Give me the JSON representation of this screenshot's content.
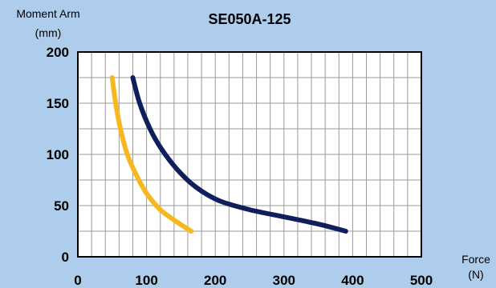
{
  "chart_data": {
    "type": "line",
    "title": "SE050A-125",
    "ylabel_line1": "Moment Arm",
    "ylabel_line2": "(mm)",
    "xlabel_line1": "Force",
    "xlabel_line2": "(N)",
    "xlim": [
      0,
      500
    ],
    "ylim": [
      0,
      200
    ],
    "x_ticks": [
      "0",
      "100",
      "200",
      "300",
      "400",
      "500"
    ],
    "y_ticks": [
      "0",
      "50",
      "100",
      "150",
      "200"
    ],
    "x_grid_step": 20,
    "y_grid_step": 25,
    "grid": true,
    "colors": {
      "background": "#aecdec",
      "plot_area": "#ffffff",
      "grid": "#9a9a9a",
      "frame": "#000000"
    },
    "series": [
      {
        "color": "#f5b820",
        "points": [
          [
            50,
            175
          ],
          [
            55,
            150
          ],
          [
            62,
            125
          ],
          [
            72,
            100
          ],
          [
            85,
            80
          ],
          [
            100,
            62
          ],
          [
            120,
            46
          ],
          [
            142,
            35
          ],
          [
            165,
            25
          ]
        ]
      },
      {
        "color": "#0f1f5c",
        "points": [
          [
            80,
            175
          ],
          [
            90,
            150
          ],
          [
            105,
            125
          ],
          [
            122,
            105
          ],
          [
            145,
            85
          ],
          [
            172,
            68
          ],
          [
            205,
            55
          ],
          [
            250,
            46
          ],
          [
            300,
            39
          ],
          [
            350,
            32
          ],
          [
            390,
            25
          ]
        ]
      }
    ]
  }
}
